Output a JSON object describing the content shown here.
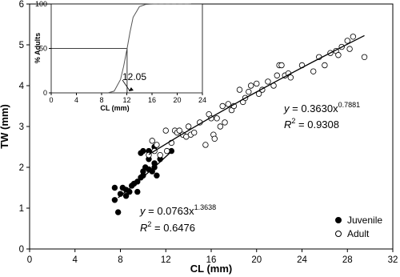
{
  "chart_data": [
    {
      "type": "scatter",
      "x_label": "CL (mm)",
      "y_label": "TW (mm)",
      "xlim": [
        0,
        32
      ],
      "xticks": [
        0,
        4,
        8,
        12,
        16,
        20,
        24,
        28,
        32
      ],
      "ylim": [
        0,
        6
      ],
      "yticks": [
        0,
        1,
        2,
        3,
        4,
        5,
        6
      ],
      "legend": "bottom-right",
      "series": [
        {
          "name": "Juvenile",
          "color": "#000000",
          "filled": true,
          "x": [
            7.5,
            7.5,
            7.8,
            8,
            8.2,
            8.5,
            8.5,
            8.8,
            9,
            9.2,
            9.5,
            9.5,
            9.8,
            10,
            10,
            10,
            10.2,
            10.5,
            10.5,
            10.8,
            11,
            11,
            11,
            11.2,
            11.5,
            12.5,
            10.5,
            9.8
          ],
          "values": [
            1.5,
            1.2,
            0.9,
            1.35,
            1.5,
            1.3,
            1.45,
            1.4,
            1.55,
            1.6,
            1.65,
            1.4,
            1.75,
            1.9,
            1.8,
            2.4,
            2.0,
            1.95,
            2.2,
            1.9,
            2.0,
            2.1,
            2.5,
            1.8,
            2.2,
            2.4,
            2.4,
            2.35
          ]
        },
        {
          "name": "Adult",
          "color": "#000000",
          "filled": false,
          "x": [
            10.5,
            10.8,
            11,
            11.2,
            11.5,
            12,
            12.5,
            12.8,
            13,
            13.2,
            13.5,
            13.8,
            14,
            14.2,
            14.5,
            15,
            15.5,
            15.8,
            16,
            16.2,
            16.3,
            16.5,
            16.8,
            17,
            17.2,
            17.5,
            17.8,
            18,
            18.5,
            18.8,
            19,
            19.3,
            19.5,
            20,
            20.2,
            20.5,
            21,
            21.5,
            21.8,
            22,
            22.2,
            22.5,
            22.8,
            23,
            24,
            25,
            25.5,
            26,
            26.5,
            27,
            27.2,
            27.5,
            28,
            28.2,
            28.5,
            29.5,
            12.1
          ],
          "values": [
            2.3,
            2.65,
            2.4,
            2.55,
            2.3,
            2.9,
            2.6,
            2.9,
            2.85,
            2.9,
            2.8,
            2.75,
            3.0,
            2.8,
            2.85,
            3.1,
            2.55,
            3.3,
            3.2,
            2.8,
            2.7,
            3.2,
            3.0,
            3.5,
            3.1,
            3.55,
            3.4,
            3.5,
            3.9,
            3.6,
            3.7,
            3.85,
            4.0,
            4.05,
            3.8,
            3.9,
            4.1,
            4.0,
            4.25,
            4.5,
            4.5,
            4.25,
            4.3,
            4.2,
            4.5,
            4.35,
            4.7,
            4.5,
            4.8,
            4.85,
            4.75,
            4.95,
            5.1,
            4.9,
            5.2,
            4.7,
            2.4
          ]
        }
      ],
      "fits": [
        {
          "x": [
            10.5,
            13,
            16,
            19,
            22,
            25,
            28,
            29.5
          ],
          "values": [
            2.316,
            2.74,
            3.227,
            3.696,
            4.148,
            4.588,
            5.016,
            5.227
          ],
          "equation": "y",
          "equation_rest": " = 0.3630x",
          "exponent": "0.7881",
          "r2": "R",
          "r2_exp": "2",
          "r2_rest": " = 0.9308"
        },
        {
          "x": [
            7.8,
            9,
            10.5,
            11.5,
            12.5
          ],
          "values": [
            1.256,
            1.527,
            1.884,
            2.133,
            2.39
          ],
          "equation": "y",
          "equation_rest": " = 0.0763x",
          "exponent": "1.3638",
          "r2": "R",
          "r2_exp": "2",
          "r2_rest": " = 0.6476"
        }
      ]
    },
    {
      "type": "line",
      "x_label": "CL (mm)",
      "y_label": "% Adults",
      "xlim": [
        0,
        24
      ],
      "xticks": [
        0,
        4,
        8,
        12,
        16,
        20,
        24
      ],
      "ylim": [
        0,
        100
      ],
      "yticks": [
        0,
        50,
        100
      ],
      "x": [
        9,
        10,
        11,
        11.5,
        12.05,
        12.5,
        13,
        14,
        15,
        16,
        22
      ],
      "values": [
        0,
        2,
        15,
        30,
        50,
        68,
        85,
        97,
        99.5,
        100,
        100
      ],
      "points_x": [
        16,
        17,
        18,
        19,
        20,
        21,
        22
      ],
      "points_values": [
        100,
        100,
        100,
        100,
        100,
        100,
        100
      ],
      "threshold": 12.05,
      "threshold_level": 50,
      "annotation": "12.05"
    }
  ]
}
